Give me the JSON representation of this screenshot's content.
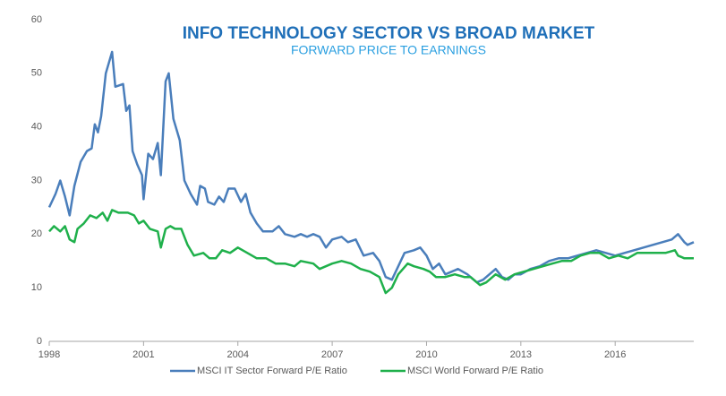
{
  "chart_data": {
    "type": "line",
    "title": "INFO TECHNOLOGY SECTOR VS BROAD MARKET",
    "subtitle": "FORWARD PRICE TO EARNINGS",
    "xlim": [
      1998,
      2018.5
    ],
    "xticks": [
      1998,
      2001,
      2004,
      2007,
      2010,
      2013,
      2016
    ],
    "ylim": [
      0,
      60
    ],
    "yticks": [
      0,
      10,
      20,
      30,
      40,
      50,
      60
    ],
    "grid": false,
    "legend": "bottom",
    "series": [
      {
        "name": "MSCI IT Sector Forward P/E Ratio",
        "color": "#4a7ebb",
        "x": [
          1998.0,
          1998.2,
          1998.35,
          1998.5,
          1998.65,
          1998.8,
          1999.0,
          1999.2,
          1999.35,
          1999.45,
          1999.55,
          1999.65,
          1999.8,
          2000.0,
          2000.1,
          2000.35,
          2000.45,
          2000.55,
          2000.65,
          2000.8,
          2000.95,
          2001.0,
          2001.15,
          2001.3,
          2001.45,
          2001.55,
          2001.7,
          2001.8,
          2001.95,
          2002.15,
          2002.3,
          2002.5,
          2002.7,
          2002.8,
          2002.95,
          2003.05,
          2003.25,
          2003.4,
          2003.55,
          2003.7,
          2003.9,
          2004.1,
          2004.25,
          2004.4,
          2004.6,
          2004.8,
          2005.1,
          2005.3,
          2005.5,
          2005.8,
          2006.0,
          2006.2,
          2006.4,
          2006.6,
          2006.8,
          2007.0,
          2007.3,
          2007.5,
          2007.75,
          2008.0,
          2008.3,
          2008.5,
          2008.7,
          2008.9,
          2009.1,
          2009.3,
          2009.6,
          2009.8,
          2010.0,
          2010.2,
          2010.4,
          2010.6,
          2010.8,
          2011.0,
          2011.3,
          2011.6,
          2011.8,
          2012.0,
          2012.2,
          2012.4,
          2012.6,
          2012.8,
          2013.0,
          2013.3,
          2013.6,
          2013.9,
          2014.2,
          2014.5,
          2014.8,
          2015.1,
          2015.4,
          2015.7,
          2016.0,
          2016.3,
          2016.6,
          2016.9,
          2017.2,
          2017.5,
          2017.8,
          2018.0,
          2018.2,
          2018.3,
          2018.5
        ],
        "values": [
          25,
          27.5,
          30,
          27,
          23.5,
          29,
          33.5,
          35.5,
          36,
          40.5,
          39,
          42,
          50,
          54,
          47.5,
          48,
          43,
          44,
          35.5,
          33,
          31,
          26.5,
          35,
          34,
          37,
          31,
          48.5,
          50,
          41.5,
          37.5,
          30,
          27.5,
          25.5,
          29,
          28.5,
          26,
          25.5,
          27,
          26,
          28.5,
          28.5,
          26,
          27.5,
          24,
          22,
          20.5,
          20.5,
          21.5,
          20,
          19.5,
          20,
          19.5,
          20,
          19.5,
          17.5,
          19,
          19.5,
          18.5,
          19,
          16,
          16.5,
          15,
          12,
          11.5,
          14,
          16.5,
          17,
          17.5,
          16,
          13.5,
          14.5,
          12.5,
          13,
          13.5,
          12.5,
          11,
          11.5,
          12.5,
          13.5,
          12,
          11.5,
          12.5,
          12.5,
          13.5,
          14,
          15,
          15.5,
          15.5,
          16,
          16.5,
          17,
          16.5,
          16,
          16.5,
          17,
          17.5,
          18,
          18.5,
          19,
          20,
          18.5,
          18,
          18.5
        ]
      },
      {
        "name": "MSCI World Forward P/E Ratio",
        "color": "#1fb04b",
        "x": [
          1998.0,
          1998.15,
          1998.35,
          1998.5,
          1998.65,
          1998.8,
          1998.9,
          1999.1,
          1999.3,
          1999.5,
          1999.7,
          1999.85,
          2000.0,
          2000.2,
          2000.5,
          2000.7,
          2000.85,
          2001.0,
          2001.2,
          2001.45,
          2001.55,
          2001.7,
          2001.85,
          2002.0,
          2002.2,
          2002.4,
          2002.6,
          2002.9,
          2003.1,
          2003.3,
          2003.5,
          2003.75,
          2004.0,
          2004.3,
          2004.6,
          2004.9,
          2005.2,
          2005.5,
          2005.8,
          2006.0,
          2006.4,
          2006.6,
          2007.0,
          2007.3,
          2007.6,
          2007.9,
          2008.2,
          2008.5,
          2008.7,
          2008.9,
          2009.1,
          2009.4,
          2009.6,
          2009.9,
          2010.1,
          2010.3,
          2010.6,
          2010.9,
          2011.2,
          2011.4,
          2011.7,
          2011.9,
          2012.2,
          2012.5,
          2012.8,
          2013.1,
          2013.4,
          2013.7,
          2014.0,
          2014.3,
          2014.6,
          2014.9,
          2015.2,
          2015.5,
          2015.8,
          2016.1,
          2016.4,
          2016.7,
          2017.0,
          2017.3,
          2017.6,
          2017.9,
          2018.0,
          2018.2,
          2018.4,
          2018.5
        ],
        "values": [
          20.5,
          21.5,
          20.5,
          21.5,
          19,
          18.5,
          21,
          22,
          23.5,
          23,
          24,
          22.5,
          24.5,
          24,
          24,
          23.5,
          22,
          22.5,
          21,
          20.5,
          17.5,
          21,
          21.5,
          21,
          21,
          18,
          16,
          16.5,
          15.5,
          15.5,
          17,
          16.5,
          17.5,
          16.5,
          15.5,
          15.5,
          14.5,
          14.5,
          14,
          15,
          14.5,
          13.5,
          14.5,
          15,
          14.5,
          13.5,
          13,
          12,
          9,
          10,
          12.5,
          14.5,
          14,
          13.5,
          13,
          12,
          12,
          12.5,
          12,
          12,
          10.5,
          11,
          12.5,
          11.5,
          12.5,
          13,
          13.5,
          14,
          14.5,
          15,
          15,
          16,
          16.5,
          16.5,
          15.5,
          16,
          15.5,
          16.5,
          16.5,
          16.5,
          16.5,
          17,
          16,
          15.5,
          15.5,
          15.5
        ]
      }
    ]
  }
}
